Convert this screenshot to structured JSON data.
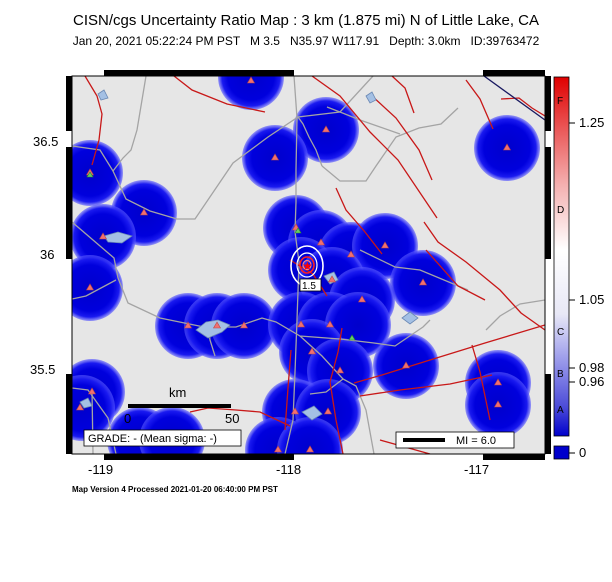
{
  "title": "CISN/cgs Uncertainty Ratio Map : 3 km (1.875 mi) N of Little Lake, CA",
  "subtitle": "Jan 20, 2021 05:22:24 PM PST   M 3.5   N35.97 W117.91   Depth: 3.0km   ID:39763472",
  "y_ticks": [
    "36.5",
    "36",
    "35.5"
  ],
  "x_ticks": [
    "-119",
    "-118",
    "-117"
  ],
  "scale_bar": {
    "unit": "km",
    "start": "0",
    "end": "50"
  },
  "grade": "GRADE: - (Mean sigma: -)",
  "mi_legend": "MI = 6.0",
  "contour_labels": [
    "1.5"
  ],
  "version": "Map Version 4 Processed 2021-01-20 06:40:00 PM PST",
  "colorbar": {
    "right_ticks": [
      "1.25",
      "1.05",
      "0.98",
      "0.96",
      "0"
    ],
    "left_letters": [
      "F",
      "D",
      "C",
      "B",
      "A"
    ]
  },
  "colors": {
    "background": "#e6e6e6",
    "station_halo": "#0000d6",
    "station_triangle": "#f07070",
    "fault": "#c81818",
    "road": "#a4a4a4",
    "water": "#8aa8cc",
    "epicenter": "#ff0000"
  }
}
